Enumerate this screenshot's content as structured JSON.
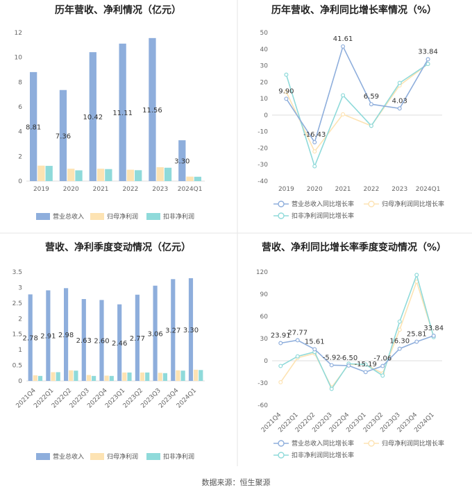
{
  "source": "数据来源：恒生聚源",
  "colors": {
    "revenue": "#8eaedc",
    "net_profit": "#fde3b3",
    "deducted_profit": "#8fdada",
    "revenue_line": "#8eaedc",
    "net_profit_line": "#fde3b3",
    "deducted_profit_line": "#8fdada",
    "axis": "#dddddd",
    "divider": "#e5e5e5"
  },
  "chart_data": [
    {
      "id": "annual_bar",
      "type": "bar",
      "title": "历年营收、净利情况（亿元）",
      "categories": [
        "2019",
        "2020",
        "2021",
        "2022",
        "2023",
        "2024Q1"
      ],
      "ylim": [
        0,
        12
      ],
      "yticks": [
        0,
        2,
        4,
        6,
        8,
        10,
        12
      ],
      "grid": false,
      "legend": "bottom",
      "series": [
        {
          "name": "营业总收入",
          "color_key": "revenue",
          "values": [
            8.81,
            7.36,
            10.42,
            11.11,
            11.56,
            3.3
          ],
          "labels": [
            "8.81",
            "7.36",
            "10.42",
            "11.11",
            "11.56",
            "3.30"
          ]
        },
        {
          "name": "归母净利润",
          "color_key": "net_profit",
          "values": [
            1.25,
            1.0,
            1.0,
            0.92,
            1.12,
            0.36
          ]
        },
        {
          "name": "扣非净利润",
          "color_key": "deducted_profit",
          "values": [
            1.23,
            0.87,
            0.97,
            0.88,
            1.08,
            0.35
          ]
        }
      ]
    },
    {
      "id": "annual_growth",
      "type": "line",
      "title": "历年营收、净利同比增长率情况（%）",
      "categories": [
        "2019",
        "2020",
        "2021",
        "2022",
        "2023",
        "2024Q1"
      ],
      "ylim": [
        -40,
        50
      ],
      "yticks": [
        -40,
        -30,
        -20,
        -10,
        0,
        10,
        20,
        30,
        40,
        50
      ],
      "grid": false,
      "legend": "bottom",
      "series": [
        {
          "name": "营业总收入同比增长率",
          "color_key": "revenue_line",
          "values": [
            9.9,
            -16.43,
            41.61,
            6.59,
            4.03,
            33.84
          ],
          "labels": [
            "9.90",
            "-16.43",
            "41.61",
            "6.59",
            "4.03",
            "33.84"
          ]
        },
        {
          "name": "归母净利润同比增长率",
          "color_key": "net_profit_line",
          "values": [
            14,
            -22,
            0.5,
            -6.5,
            18,
            31
          ]
        },
        {
          "name": "扣非净利润同比增长率",
          "color_key": "deducted_profit_line",
          "values": [
            24.5,
            -31,
            12,
            -6.5,
            19.5,
            31
          ]
        }
      ]
    },
    {
      "id": "quarterly_bar",
      "type": "bar",
      "title": "营收、净利季度变动情况（亿元）",
      "categories": [
        "2021Q4",
        "2022Q1",
        "2022Q2",
        "2022Q3",
        "2022Q4",
        "2023Q1",
        "2023Q2",
        "2023Q3",
        "2023Q4",
        "2024Q1"
      ],
      "ylim": [
        0,
        3.5
      ],
      "yticks": [
        0,
        0.5,
        1,
        1.5,
        2,
        2.5,
        3,
        3.5
      ],
      "grid": false,
      "legend": "bottom",
      "series": [
        {
          "name": "营业总收入",
          "color_key": "revenue",
          "values": [
            2.78,
            2.91,
            2.98,
            2.63,
            2.6,
            2.46,
            2.77,
            3.06,
            3.27,
            3.3
          ],
          "labels": [
            "2.78",
            "2.91",
            "2.98",
            "2.63",
            "2.60",
            "2.46",
            "2.77",
            "3.06",
            "3.27",
            "3.30"
          ]
        },
        {
          "name": "归母净利润",
          "color_key": "net_profit",
          "values": [
            0.18,
            0.28,
            0.34,
            0.19,
            0.17,
            0.27,
            0.27,
            0.26,
            0.34,
            0.36
          ]
        },
        {
          "name": "扣非净利润",
          "color_key": "deducted_profit",
          "values": [
            0.16,
            0.28,
            0.33,
            0.16,
            0.16,
            0.27,
            0.27,
            0.25,
            0.33,
            0.35
          ]
        }
      ]
    },
    {
      "id": "quarterly_growth",
      "type": "line",
      "title": "营收、净利同比增长率季度变动情况（%）",
      "categories": [
        "2021Q4",
        "2022Q1",
        "2022Q2",
        "2022Q3",
        "2022Q4",
        "2023Q1",
        "2023Q2",
        "2023Q3",
        "2023Q4",
        "2024Q1"
      ],
      "ylim": [
        -60,
        120
      ],
      "yticks": [
        -60,
        -30,
        0,
        30,
        60,
        90,
        120
      ],
      "grid": false,
      "legend": "bottom",
      "series": [
        {
          "name": "营业总收入同比增长率",
          "color_key": "revenue_line",
          "values": [
            23.91,
            27.77,
            15.61,
            -5.92,
            -6.5,
            -15.19,
            -7.06,
            16.3,
            25.81,
            33.84
          ],
          "labels": [
            "23.91",
            "27.77",
            "15.61",
            "-5.92",
            "-6.50",
            "-15.19",
            "-7.06",
            "16.30",
            "25.81",
            "33.84"
          ]
        },
        {
          "name": "归母净利润同比增长率",
          "color_key": "net_profit_line",
          "values": [
            -29,
            4,
            10,
            -36,
            -5,
            -5,
            -17,
            42,
            107,
            33
          ]
        },
        {
          "name": "扣非净利润同比增长率",
          "color_key": "deducted_profit_line",
          "values": [
            -7,
            6,
            12,
            -38,
            -4,
            -5,
            -20,
            53,
            116,
            32
          ]
        }
      ]
    }
  ]
}
